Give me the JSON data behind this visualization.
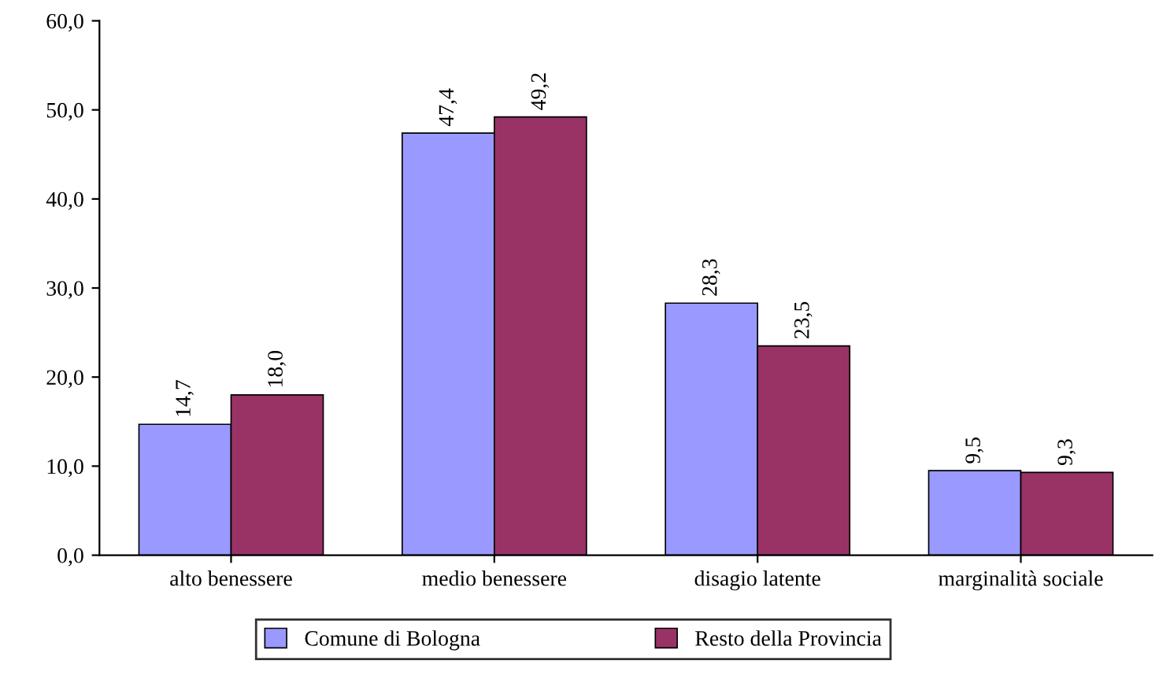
{
  "chart_data": {
    "type": "bar",
    "categories": [
      "alto benessere",
      "medio benessere",
      "disagio latente",
      "marginalità sociale"
    ],
    "series": [
      {
        "name": "Comune di Bologna",
        "color": "#9999ff",
        "values": [
          14.7,
          47.4,
          28.3,
          9.5
        ],
        "value_labels": [
          "14,7",
          "47,4",
          "28,3",
          "9,5"
        ]
      },
      {
        "name": "Resto della Provincia",
        "color": "#993366",
        "values": [
          18.0,
          49.2,
          23.5,
          9.3
        ],
        "value_labels": [
          "18,0",
          "49,2",
          "23,5",
          "9,3"
        ]
      }
    ],
    "ylim": [
      0,
      60
    ],
    "yticks": [
      {
        "value": 0,
        "label": "0,0"
      },
      {
        "value": 10,
        "label": "10,0"
      },
      {
        "value": 20,
        "label": "20,0"
      },
      {
        "value": 30,
        "label": "30,0"
      },
      {
        "value": 40,
        "label": "40,0"
      },
      {
        "value": 50,
        "label": "50,0"
      },
      {
        "value": 60,
        "label": "60,0"
      }
    ],
    "grid": false,
    "legend": "bottom"
  }
}
